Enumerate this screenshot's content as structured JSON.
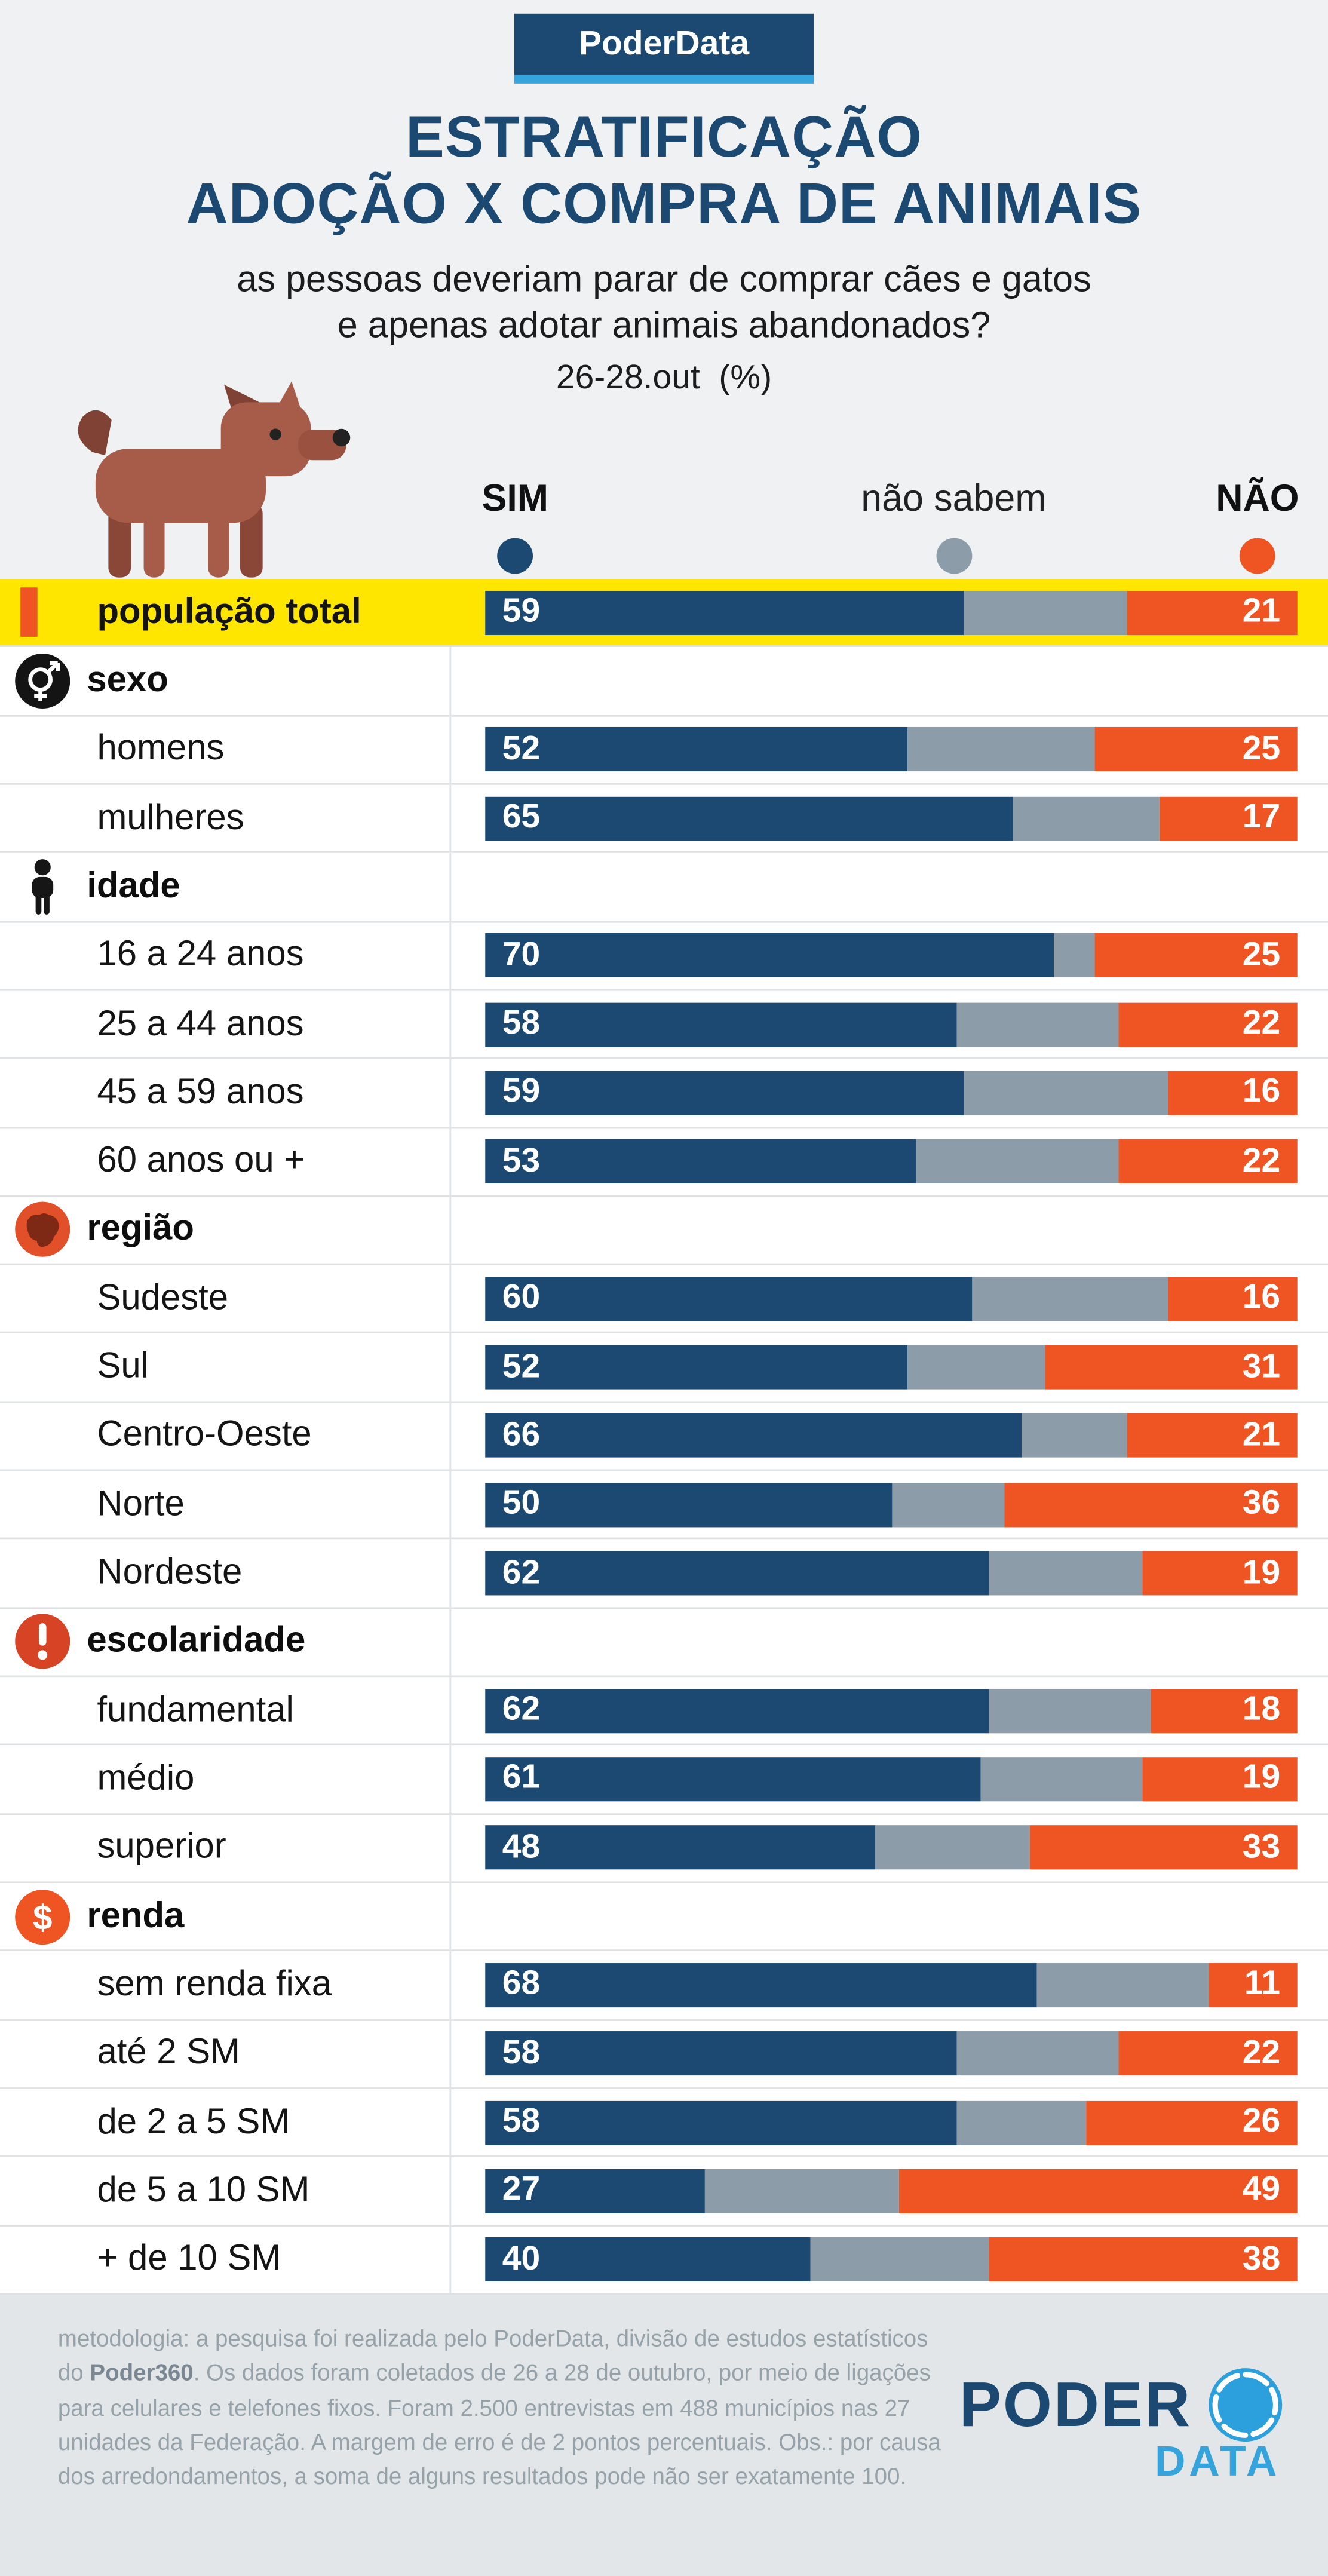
{
  "badge": "PoderData",
  "title": {
    "line1": "ESTRATIFICAÇÃO",
    "line2": "ADOÇÃO X COMPRA DE ANIMAIS"
  },
  "subtitle": {
    "line1": "as pessoas deveriam parar de comprar cães e gatos",
    "line2": "e apenas adotar animais abandonados?"
  },
  "date_label": "26-28.out  (%)",
  "legend": {
    "sim": "SIM",
    "nao_sabem": "não sabem",
    "nao": "NÃO"
  },
  "colors": {
    "navy": "#1b4971",
    "light_blue": "#35a3dc",
    "orange": "#ef5423",
    "gray": "#8c9ca8",
    "yellow": "#ffe600",
    "page_bg": "#eff1f2",
    "row_border": "#dfe2e4",
    "footer_bg": "#e3e6e8",
    "footer_text": "#96a2aa"
  },
  "chart_data": {
    "type": "bar",
    "stacked": true,
    "orientation": "horizontal",
    "unit": "%",
    "series_names": [
      "SIM",
      "não sabem",
      "NÃO"
    ],
    "rows": [
      {
        "type": "total",
        "label": "população total",
        "sim": 59,
        "ns": 20,
        "nao": 21
      },
      {
        "type": "section",
        "label": "sexo",
        "icon": "gender-icon"
      },
      {
        "type": "data",
        "label": "homens",
        "sim": 52,
        "ns": 23,
        "nao": 25
      },
      {
        "type": "data",
        "label": "mulheres",
        "sim": 65,
        "ns": 18,
        "nao": 17
      },
      {
        "type": "section",
        "label": "idade",
        "icon": "person-icon"
      },
      {
        "type": "data",
        "label": "16 a 24 anos",
        "sim": 70,
        "ns": 5,
        "nao": 25
      },
      {
        "type": "data",
        "label": "25 a 44 anos",
        "sim": 58,
        "ns": 20,
        "nao": 22
      },
      {
        "type": "data",
        "label": "45 a 59 anos",
        "sim": 59,
        "ns": 25,
        "nao": 16
      },
      {
        "type": "data",
        "label": "60 anos ou +",
        "sim": 53,
        "ns": 25,
        "nao": 22
      },
      {
        "type": "section",
        "label": "região",
        "icon": "brazil-map-icon"
      },
      {
        "type": "data",
        "label": "Sudeste",
        "sim": 60,
        "ns": 24,
        "nao": 16
      },
      {
        "type": "data",
        "label": "Sul",
        "sim": 52,
        "ns": 17,
        "nao": 31
      },
      {
        "type": "data",
        "label": "Centro-Oeste",
        "sim": 66,
        "ns": 13,
        "nao": 21
      },
      {
        "type": "data",
        "label": "Norte",
        "sim": 50,
        "ns": 14,
        "nao": 36
      },
      {
        "type": "data",
        "label": "Nordeste",
        "sim": 62,
        "ns": 19,
        "nao": 19
      },
      {
        "type": "section",
        "label": "escolaridade",
        "icon": "exclamation-icon"
      },
      {
        "type": "data",
        "label": "fundamental",
        "sim": 62,
        "ns": 20,
        "nao": 18
      },
      {
        "type": "data",
        "label": "médio",
        "sim": 61,
        "ns": 20,
        "nao": 19
      },
      {
        "type": "data",
        "label": "superior",
        "sim": 48,
        "ns": 19,
        "nao": 33
      },
      {
        "type": "section",
        "label": "renda",
        "icon": "dollar-icon"
      },
      {
        "type": "data",
        "label": "sem renda fixa",
        "sim": 68,
        "ns": 21,
        "nao": 11
      },
      {
        "type": "data",
        "label": "até 2 SM",
        "sim": 58,
        "ns": 20,
        "nao": 22
      },
      {
        "type": "data",
        "label": "de 2 a 5 SM",
        "sim": 58,
        "ns": 16,
        "nao": 26
      },
      {
        "type": "data",
        "label": "de 5 a 10 SM",
        "sim": 27,
        "ns": 24,
        "nao": 49
      },
      {
        "type": "data",
        "label": "+ de 10 SM",
        "sim": 40,
        "ns": 22,
        "nao": 38
      }
    ]
  },
  "footer": {
    "method_pre": "metodologia: a pesquisa foi realizada pelo PoderData, divisão de estudos estatísticos do ",
    "method_bold": "Poder360",
    "method_post": ". Os dados foram coletados de 26 a 28 de outubro, por meio de ligações para celulares e telefones fixos. Foram 2.500 entrevistas em 488 municípios nas 27 unidades da Federação. A margem de erro é de 2 pontos percentuais. Obs.: por causa dos arredondamentos, a soma de alguns resultados pode não ser exatamente 100.",
    "logo_line1": "PODER",
    "logo_line2": "DATA"
  }
}
